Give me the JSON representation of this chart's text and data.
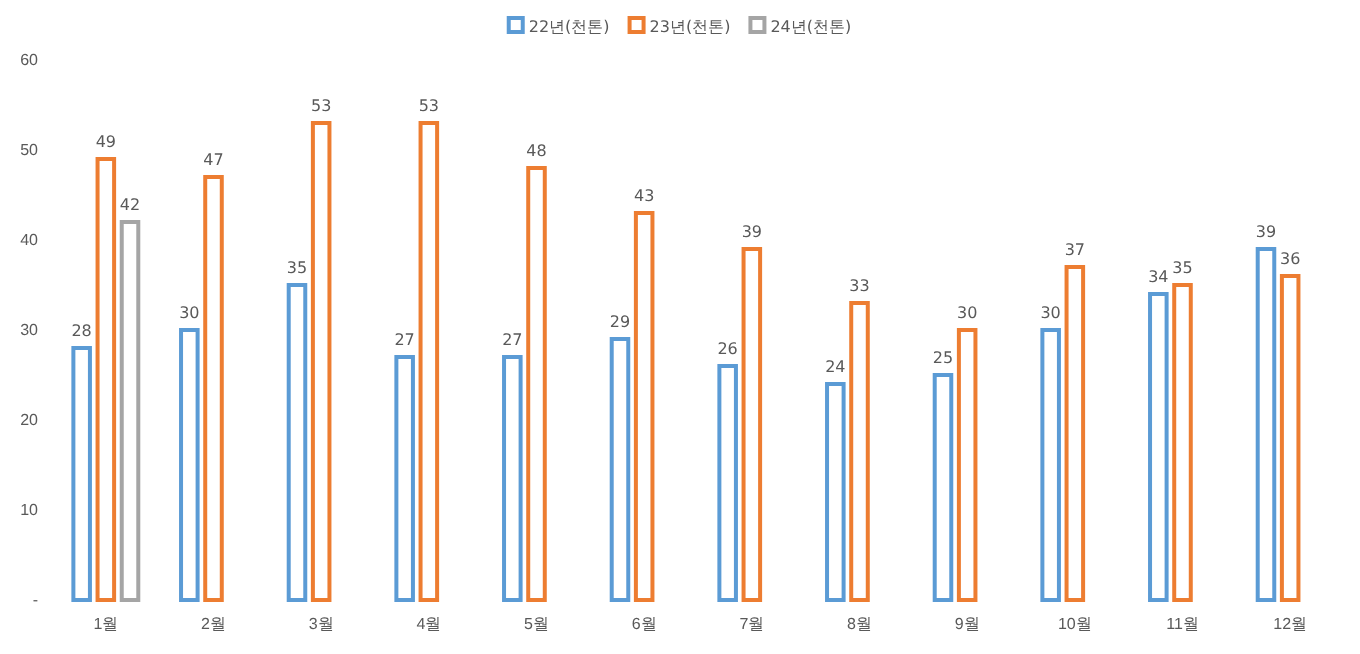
{
  "chart_data": {
    "type": "bar",
    "categories": [
      "1월",
      "2월",
      "3월",
      "4월",
      "5월",
      "6월",
      "7월",
      "8월",
      "9월",
      "10월",
      "11월",
      "12월"
    ],
    "series": [
      {
        "name": "22년(천톤)",
        "color": "#5b9bd5",
        "values": [
          28,
          30,
          35,
          27,
          27,
          29,
          26,
          24,
          25,
          30,
          34,
          39
        ]
      },
      {
        "name": "23년(천톤)",
        "color": "#ed7d31",
        "values": [
          49,
          47,
          53,
          53,
          48,
          43,
          39,
          33,
          30,
          37,
          35,
          36
        ]
      },
      {
        "name": "24년(천톤)",
        "color": "#a5a5a5",
        "values": [
          42,
          null,
          null,
          null,
          null,
          null,
          null,
          null,
          null,
          null,
          null,
          null
        ]
      }
    ],
    "ylim": [
      0,
      60
    ],
    "yticks": [
      {
        "value": 0,
        "label": "-"
      },
      10,
      20,
      30,
      40,
      50,
      60
    ],
    "data_labels": true,
    "grid": false,
    "legend": "top"
  }
}
